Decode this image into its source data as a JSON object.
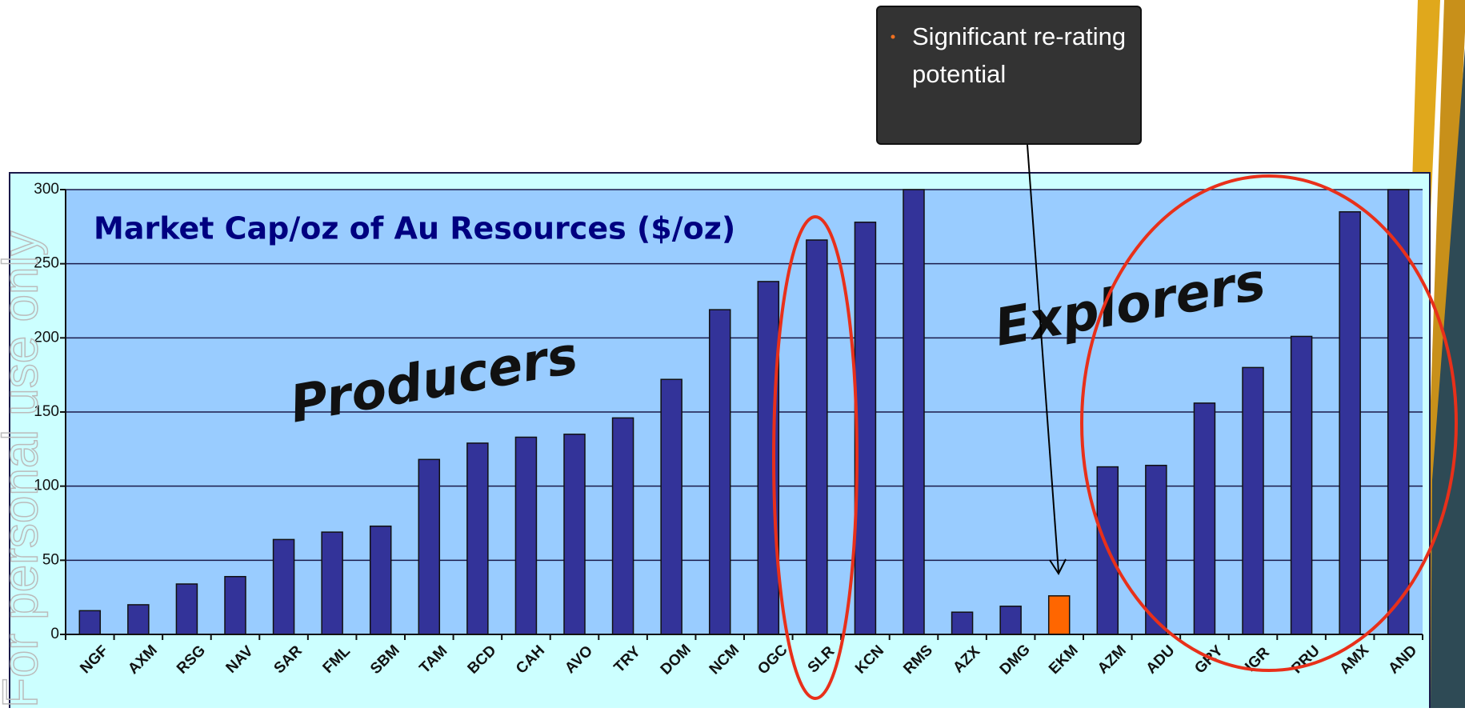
{
  "chart_data": {
    "type": "bar",
    "title": "Market Cap/oz of Au Resources ($/oz)",
    "categories": [
      "NGF",
      "AXM",
      "RSG",
      "NAV",
      "SAR",
      "FML",
      "SBM",
      "TAM",
      "BCD",
      "CAH",
      "AVO",
      "TRY",
      "DOM",
      "NCM",
      "OGC",
      "SLR",
      "KCN",
      "RMS",
      "AZX",
      "DMG",
      "EKM",
      "AZM",
      "ADU",
      "GRY",
      "IGR",
      "PRU",
      "AMX",
      "AND"
    ],
    "values": [
      16,
      20,
      34,
      39,
      64,
      69,
      73,
      118,
      129,
      133,
      135,
      146,
      172,
      219,
      238,
      266,
      278,
      300,
      15,
      19,
      26,
      113,
      114,
      156,
      180,
      201,
      285,
      300
    ],
    "colors": [
      "#333399",
      "#333399",
      "#333399",
      "#333399",
      "#333399",
      "#333399",
      "#333399",
      "#333399",
      "#333399",
      "#333399",
      "#333399",
      "#333399",
      "#333399",
      "#333399",
      "#333399",
      "#333399",
      "#333399",
      "#333399",
      "#333399",
      "#333399",
      "#ff6600",
      "#333399",
      "#333399",
      "#333399",
      "#333399",
      "#333399",
      "#333399",
      "#333399"
    ],
    "ylim": [
      0,
      300
    ],
    "yticks": [
      0,
      50,
      100,
      150,
      200,
      250,
      300
    ],
    "grid": true,
    "annotations": {
      "producers": "Producers",
      "explorers": "Explorers",
      "callout": "Significant re-rating potential"
    },
    "watermark": "For personal use only"
  }
}
